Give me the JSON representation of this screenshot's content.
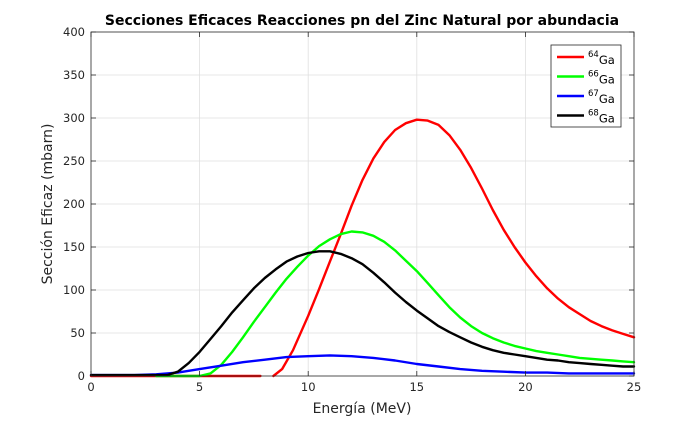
{
  "chart_data": {
    "type": "line",
    "title": "Secciones Eficaces Reacciones pn del Zinc Natural por abundacia",
    "xlabel": "Energía (MeV)",
    "ylabel": "Sección Eficaz (mbarn)",
    "xlim": [
      0,
      25
    ],
    "ylim": [
      0,
      400
    ],
    "xticks": [
      0,
      5,
      10,
      15,
      20,
      25
    ],
    "yticks": [
      0,
      50,
      100,
      150,
      200,
      250,
      300,
      350,
      400
    ],
    "grid": true,
    "legend_position": "top-right",
    "series": [
      {
        "name_sup": "64",
        "name_base": "Ga",
        "color": "#ff0000",
        "segments": [
          [
            [
              0,
              0
            ],
            [
              7.8,
              0
            ]
          ],
          [
            [
              8.4,
              0
            ],
            [
              8.8,
              8
            ],
            [
              9.3,
              30
            ],
            [
              10,
              70
            ],
            [
              10.5,
              101
            ],
            [
              11,
              133
            ],
            [
              11.5,
              165
            ],
            [
              12,
              198
            ],
            [
              12.5,
              228
            ],
            [
              13,
              253
            ],
            [
              13.5,
              272
            ],
            [
              14,
              286
            ],
            [
              14.5,
              294
            ],
            [
              15,
              298
            ],
            [
              15.5,
              297
            ],
            [
              16,
              292
            ],
            [
              16.5,
              280
            ],
            [
              17,
              263
            ],
            [
              17.5,
              242
            ],
            [
              18,
              218
            ],
            [
              18.5,
              193
            ],
            [
              19,
              170
            ],
            [
              19.5,
              150
            ],
            [
              20,
              132
            ],
            [
              20.5,
              116
            ],
            [
              21,
              102
            ],
            [
              21.5,
              90
            ],
            [
              22,
              80
            ],
            [
              22.5,
              72
            ],
            [
              23,
              64
            ],
            [
              23.5,
              58
            ],
            [
              24,
              53
            ],
            [
              24.5,
              49
            ],
            [
              25,
              45
            ]
          ]
        ]
      },
      {
        "name_sup": "66",
        "name_base": "Ga",
        "color": "#00ff00",
        "segments": [
          [
            [
              3,
              0
            ],
            [
              5,
              0
            ],
            [
              5.5,
              3
            ],
            [
              6,
              13
            ],
            [
              6.5,
              28
            ],
            [
              7,
              45
            ],
            [
              7.5,
              63
            ],
            [
              8,
              80
            ],
            [
              8.5,
              97
            ],
            [
              9,
              113
            ],
            [
              9.5,
              127
            ],
            [
              10,
              140
            ],
            [
              10.5,
              151
            ],
            [
              11,
              159
            ],
            [
              11.5,
              165
            ],
            [
              12,
              168
            ],
            [
              12.5,
              167
            ],
            [
              13,
              163
            ],
            [
              13.5,
              156
            ],
            [
              14,
              146
            ],
            [
              14.5,
              134
            ],
            [
              15,
              122
            ],
            [
              15.5,
              108
            ],
            [
              16,
              94
            ],
            [
              16.5,
              80
            ],
            [
              17,
              68
            ],
            [
              17.5,
              58
            ],
            [
              18,
              50
            ],
            [
              18.5,
              44
            ],
            [
              19,
              39
            ],
            [
              19.5,
              35
            ],
            [
              20,
              32
            ],
            [
              20.5,
              29
            ],
            [
              21,
              27
            ],
            [
              21.5,
              25
            ],
            [
              22,
              23
            ],
            [
              22.5,
              21
            ],
            [
              23,
              20
            ],
            [
              23.5,
              19
            ],
            [
              24,
              18
            ],
            [
              24.5,
              17
            ],
            [
              25,
              16
            ]
          ]
        ]
      },
      {
        "name_sup": "67",
        "name_base": "Ga",
        "color": "#0000ff",
        "segments": [
          [
            [
              0,
              1
            ],
            [
              2,
              1
            ],
            [
              3,
              2
            ],
            [
              4,
              4
            ],
            [
              5,
              8
            ],
            [
              6,
              12
            ],
            [
              7,
              16
            ],
            [
              8,
              19
            ],
            [
              9,
              22
            ],
            [
              10,
              23
            ],
            [
              11,
              24
            ],
            [
              12,
              23
            ],
            [
              13,
              21
            ],
            [
              14,
              18
            ],
            [
              15,
              14
            ],
            [
              16,
              11
            ],
            [
              17,
              8
            ],
            [
              18,
              6
            ],
            [
              19,
              5
            ],
            [
              20,
              4
            ],
            [
              21,
              4
            ],
            [
              22,
              3
            ],
            [
              23,
              3
            ],
            [
              24,
              3
            ],
            [
              25,
              3
            ]
          ]
        ]
      },
      {
        "name_sup": "68",
        "name_base": "Ga",
        "color": "#000000",
        "segments": [
          [
            [
              0,
              1
            ],
            [
              3.5,
              1
            ],
            [
              4,
              5
            ],
            [
              4.5,
              15
            ],
            [
              5,
              28
            ],
            [
              5.5,
              43
            ],
            [
              6,
              58
            ],
            [
              6.5,
              74
            ],
            [
              7,
              88
            ],
            [
              7.5,
              102
            ],
            [
              8,
              114
            ],
            [
              8.5,
              124
            ],
            [
              9,
              133
            ],
            [
              9.5,
              139
            ],
            [
              10,
              143
            ],
            [
              10.5,
              145
            ],
            [
              11,
              145
            ],
            [
              11.5,
              142
            ],
            [
              12,
              137
            ],
            [
              12.5,
              130
            ],
            [
              13,
              120
            ],
            [
              13.5,
              109
            ],
            [
              14,
              97
            ],
            [
              14.5,
              86
            ],
            [
              15,
              76
            ],
            [
              15.5,
              67
            ],
            [
              16,
              58
            ],
            [
              16.5,
              51
            ],
            [
              17,
              45
            ],
            [
              17.5,
              39
            ],
            [
              18,
              34
            ],
            [
              18.5,
              30
            ],
            [
              19,
              27
            ],
            [
              19.5,
              25
            ],
            [
              20,
              23
            ],
            [
              20.5,
              21
            ],
            [
              21,
              19
            ],
            [
              21.5,
              18
            ],
            [
              22,
              16
            ],
            [
              22.5,
              15
            ],
            [
              23,
              14
            ],
            [
              23.5,
              13
            ],
            [
              24,
              12
            ],
            [
              24.5,
              11
            ],
            [
              25,
              11
            ]
          ]
        ]
      }
    ]
  }
}
